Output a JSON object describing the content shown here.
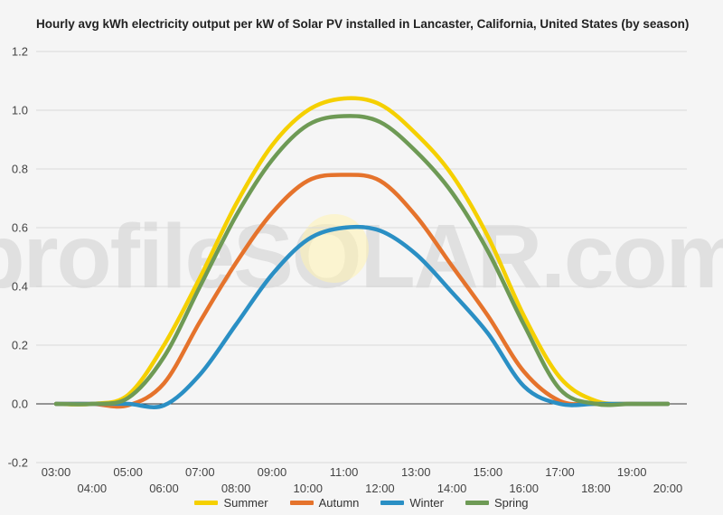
{
  "title": "Hourly avg kWh electricity output per kW of Solar PV installed in Lancaster, California, United States (by season)",
  "watermark": "profileSOLAR.com",
  "chart_data": {
    "type": "line",
    "title": "Hourly avg kWh electricity output per kW of Solar PV installed in Lancaster, California, United States (by season)",
    "xlabel": "",
    "ylabel": "",
    "ylim": [
      -0.2,
      1.2
    ],
    "yticks": [
      "-0.2",
      "0.0",
      "0.2",
      "0.4",
      "0.6",
      "0.8",
      "1.0",
      "1.2"
    ],
    "xticks": [
      "03:00",
      "04:00",
      "05:00",
      "06:00",
      "07:00",
      "08:00",
      "09:00",
      "10:00",
      "11:00",
      "12:00",
      "13:00",
      "14:00",
      "15:00",
      "16:00",
      "17:00",
      "18:00",
      "19:00",
      "20:00"
    ],
    "grid": true,
    "legend_position": "bottom",
    "x": [
      3,
      4,
      5,
      6,
      7,
      8,
      9,
      10,
      11,
      12,
      13,
      14,
      15,
      16,
      17,
      18,
      19,
      20
    ],
    "series": [
      {
        "name": "Summer",
        "color": "#f5d000",
        "values": [
          0.0,
          0.0,
          0.03,
          0.2,
          0.43,
          0.68,
          0.88,
          1.0,
          1.04,
          1.02,
          0.92,
          0.78,
          0.57,
          0.3,
          0.09,
          0.01,
          0.0,
          0.0
        ]
      },
      {
        "name": "Autumn",
        "color": "#e5732c",
        "values": [
          0.0,
          0.0,
          -0.005,
          0.07,
          0.28,
          0.48,
          0.65,
          0.76,
          0.78,
          0.76,
          0.64,
          0.47,
          0.3,
          0.11,
          0.01,
          0.0,
          0.0,
          0.0
        ]
      },
      {
        "name": "Winter",
        "color": "#2a8fc4",
        "values": [
          0.0,
          0.0,
          0.0,
          -0.005,
          0.1,
          0.27,
          0.44,
          0.56,
          0.6,
          0.59,
          0.51,
          0.38,
          0.24,
          0.06,
          0.0,
          0.0,
          0.0,
          0.0
        ]
      },
      {
        "name": "Spring",
        "color": "#6e9a55",
        "values": [
          0.0,
          0.0,
          0.02,
          0.16,
          0.4,
          0.64,
          0.83,
          0.95,
          0.98,
          0.96,
          0.86,
          0.72,
          0.52,
          0.27,
          0.05,
          0.0,
          0.0,
          0.0
        ]
      }
    ]
  }
}
